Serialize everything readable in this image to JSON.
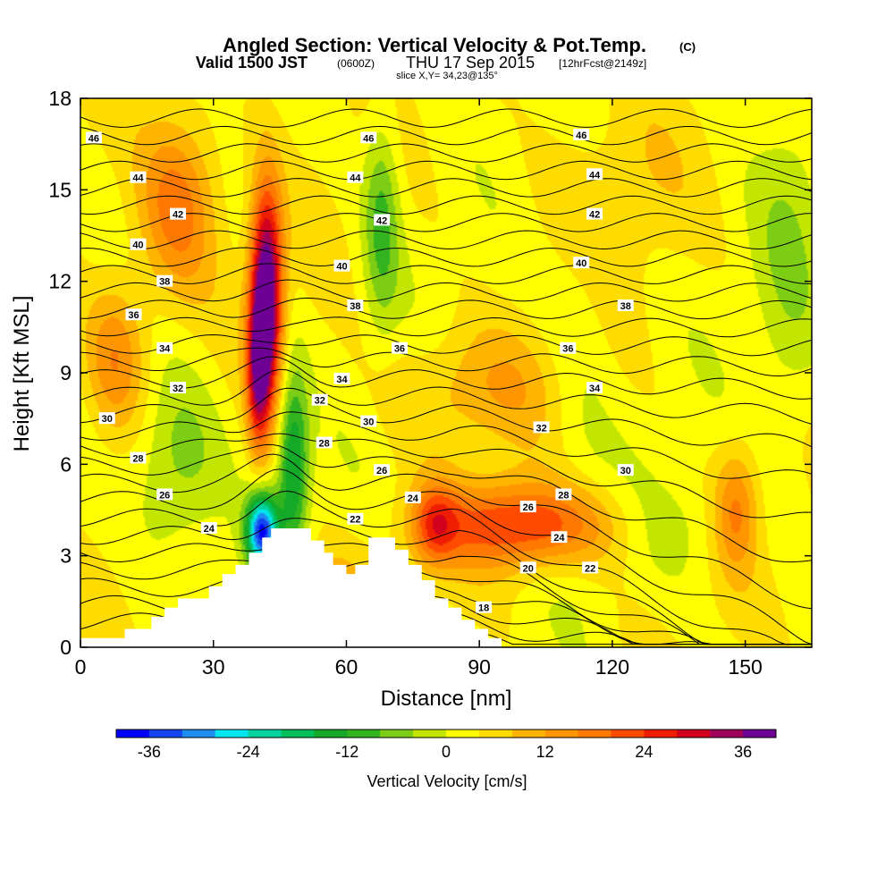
{
  "chart_data": {
    "type": "contour",
    "title": "Angled Section: Vertical Velocity & Pot.Temp.",
    "title_unit": "(C)",
    "subtitle_prefix": "Valid 1500 JST",
    "subtitle_zulu": "(0600Z)",
    "subtitle_date": "THU 17 Sep 2015",
    "subtitle_fcst": "[12hrFcst@2149z]",
    "slice_label": "slice X,Y= 34,23@135°",
    "xlabel": "Distance [nm]",
    "ylabel": "Height [Kft MSL]",
    "xlim": [
      0,
      165
    ],
    "ylim": [
      0,
      18
    ],
    "xticks": [
      0,
      30,
      60,
      90,
      120,
      150
    ],
    "yticks": [
      0,
      3,
      6,
      9,
      12,
      15,
      18
    ],
    "colorbar": {
      "label": "Vertical Velocity [cm/s]",
      "ticks": [
        -36,
        -24,
        -12,
        0,
        12,
        24,
        36
      ],
      "levels": [
        -40,
        -36,
        -32,
        -28,
        -24,
        -20,
        -16,
        -12,
        -8,
        -4,
        0,
        4,
        8,
        12,
        16,
        20,
        24,
        28,
        32,
        36,
        40
      ],
      "colors": [
        "#0000ff",
        "#1446f0",
        "#1e8cf0",
        "#00e6f0",
        "#00d2a0",
        "#00be5a",
        "#14aa28",
        "#32b41e",
        "#7dcd14",
        "#c3e600",
        "#ffff00",
        "#ffdc00",
        "#ffb400",
        "#ff9600",
        "#ff7800",
        "#ff4b00",
        "#f01e00",
        "#d2001e",
        "#a0005a",
        "#6e0096"
      ]
    },
    "vertical_velocity_features": [
      {
        "x": 42,
        "y": 11.5,
        "sx": 3.5,
        "sy": 3.5,
        "value": 42
      },
      {
        "x": 40,
        "y": 9.0,
        "sx": 2.5,
        "sy": 2.5,
        "value": 22
      },
      {
        "x": 22,
        "y": 14.5,
        "sx": 9,
        "sy": 3,
        "value": 16
      },
      {
        "x": 8,
        "y": 9.5,
        "sx": 7,
        "sy": 2.5,
        "value": 13
      },
      {
        "x": 100,
        "y": 4.0,
        "sx": 20,
        "sy": 1.4,
        "value": 22
      },
      {
        "x": 80,
        "y": 4.0,
        "sx": 5,
        "sy": 1.3,
        "value": 15
      },
      {
        "x": 148,
        "y": 4.5,
        "sx": 5,
        "sy": 2.0,
        "value": 14
      },
      {
        "x": 90,
        "y": 8.5,
        "sx": 20,
        "sy": 2.0,
        "value": 8
      },
      {
        "x": 48,
        "y": 6.0,
        "sx": 3.5,
        "sy": 3.0,
        "value": -20
      },
      {
        "x": 41,
        "y": 3.8,
        "sx": 3.5,
        "sy": 1.2,
        "value": -38
      },
      {
        "x": 68,
        "y": 14.0,
        "sx": 4,
        "sy": 3.5,
        "value": -12
      },
      {
        "x": 22,
        "y": 6.0,
        "sx": 10,
        "sy": 3.0,
        "value": -10
      },
      {
        "x": 160,
        "y": 12.0,
        "sx": 8,
        "sy": 6.0,
        "value": -6
      },
      {
        "x": 112,
        "y": 9.0,
        "sx": 8,
        "sy": 5.0,
        "value": -4
      },
      {
        "x": 135,
        "y": 4.0,
        "sx": 15,
        "sy": 1.8,
        "value": -4
      },
      {
        "x": 120,
        "y": 15.0,
        "sx": 18,
        "sy": 3.0,
        "value": 4
      },
      {
        "x": 55,
        "y": 1.5,
        "sx": 10,
        "sy": 1.5,
        "value": 10
      }
    ],
    "terrain_profile": [
      [
        0,
        0.3
      ],
      [
        10,
        0.3
      ],
      [
        10,
        0.6
      ],
      [
        16,
        0.6
      ],
      [
        16,
        1.0
      ],
      [
        19,
        1.0
      ],
      [
        19,
        1.3
      ],
      [
        22,
        1.3
      ],
      [
        22,
        1.6
      ],
      [
        29,
        1.6
      ],
      [
        29,
        2.0
      ],
      [
        32,
        2.0
      ],
      [
        32,
        2.4
      ],
      [
        35,
        2.4
      ],
      [
        35,
        2.7
      ],
      [
        38,
        2.7
      ],
      [
        38,
        3.1
      ],
      [
        41,
        3.1
      ],
      [
        41,
        3.6
      ],
      [
        43,
        3.6
      ],
      [
        43,
        3.9
      ],
      [
        52,
        3.9
      ],
      [
        52,
        3.5
      ],
      [
        55,
        3.5
      ],
      [
        55,
        3.1
      ],
      [
        57,
        3.1
      ],
      [
        57,
        2.7
      ],
      [
        60,
        2.7
      ],
      [
        60,
        2.4
      ],
      [
        62,
        2.4
      ],
      [
        62,
        2.7
      ],
      [
        65,
        2.7
      ],
      [
        65,
        3.6
      ],
      [
        71,
        3.6
      ],
      [
        71,
        3.2
      ],
      [
        74,
        3.2
      ],
      [
        74,
        2.7
      ],
      [
        77,
        2.7
      ],
      [
        77,
        2.2
      ],
      [
        80,
        2.2
      ],
      [
        80,
        1.6
      ],
      [
        83,
        1.6
      ],
      [
        83,
        1.3
      ],
      [
        86,
        1.3
      ],
      [
        86,
        0.9
      ],
      [
        89,
        0.9
      ],
      [
        89,
        0.6
      ],
      [
        92,
        0.6
      ],
      [
        92,
        0.3
      ],
      [
        95,
        0.3
      ],
      [
        95,
        0.0
      ]
    ],
    "theta_contours": {
      "levels": [
        17,
        18,
        19,
        20,
        21,
        22,
        23,
        24,
        25,
        26,
        27,
        28,
        29,
        30,
        31,
        32,
        33,
        34,
        35,
        36,
        37,
        38,
        39,
        40,
        41,
        42,
        43,
        44,
        45,
        46,
        47
      ],
      "labels": [
        {
          "text": "46",
          "x": 3,
          "y": 16.7
        },
        {
          "text": "44",
          "x": 13,
          "y": 15.4
        },
        {
          "text": "42",
          "x": 22,
          "y": 14.2
        },
        {
          "text": "40",
          "x": 13,
          "y": 13.2
        },
        {
          "text": "38",
          "x": 19,
          "y": 12.0
        },
        {
          "text": "36",
          "x": 12,
          "y": 10.9
        },
        {
          "text": "34",
          "x": 19,
          "y": 9.8
        },
        {
          "text": "32",
          "x": 22,
          "y": 8.5
        },
        {
          "text": "30",
          "x": 6,
          "y": 7.5
        },
        {
          "text": "28",
          "x": 13,
          "y": 6.2
        },
        {
          "text": "26",
          "x": 19,
          "y": 5.0
        },
        {
          "text": "24",
          "x": 29,
          "y": 3.9
        },
        {
          "text": "46",
          "x": 65,
          "y": 16.7
        },
        {
          "text": "44",
          "x": 62,
          "y": 15.4
        },
        {
          "text": "42",
          "x": 68,
          "y": 14.0
        },
        {
          "text": "40",
          "x": 59,
          "y": 12.5
        },
        {
          "text": "38",
          "x": 62,
          "y": 11.2
        },
        {
          "text": "36",
          "x": 72,
          "y": 9.8
        },
        {
          "text": "34",
          "x": 59,
          "y": 8.8
        },
        {
          "text": "32",
          "x": 54,
          "y": 8.1
        },
        {
          "text": "30",
          "x": 65,
          "y": 7.4
        },
        {
          "text": "28",
          "x": 55,
          "y": 6.7
        },
        {
          "text": "26",
          "x": 68,
          "y": 5.8
        },
        {
          "text": "24",
          "x": 75,
          "y": 4.9
        },
        {
          "text": "22",
          "x": 62,
          "y": 4.2
        },
        {
          "text": "46",
          "x": 113,
          "y": 16.8
        },
        {
          "text": "44",
          "x": 116,
          "y": 15.5
        },
        {
          "text": "42",
          "x": 116,
          "y": 14.2
        },
        {
          "text": "40",
          "x": 113,
          "y": 12.6
        },
        {
          "text": "38",
          "x": 123,
          "y": 11.2
        },
        {
          "text": "36",
          "x": 110,
          "y": 9.8
        },
        {
          "text": "34",
          "x": 116,
          "y": 8.5
        },
        {
          "text": "32",
          "x": 104,
          "y": 7.2
        },
        {
          "text": "30",
          "x": 123,
          "y": 5.8
        },
        {
          "text": "28",
          "x": 109,
          "y": 5.0
        },
        {
          "text": "26",
          "x": 101,
          "y": 4.6
        },
        {
          "text": "24",
          "x": 108,
          "y": 3.6
        },
        {
          "text": "22",
          "x": 115,
          "y": 2.6
        },
        {
          "text": "20",
          "x": 101,
          "y": 2.6
        },
        {
          "text": "18",
          "x": 91,
          "y": 1.3
        }
      ]
    },
    "grid": false,
    "legend_placement": "bottom"
  }
}
